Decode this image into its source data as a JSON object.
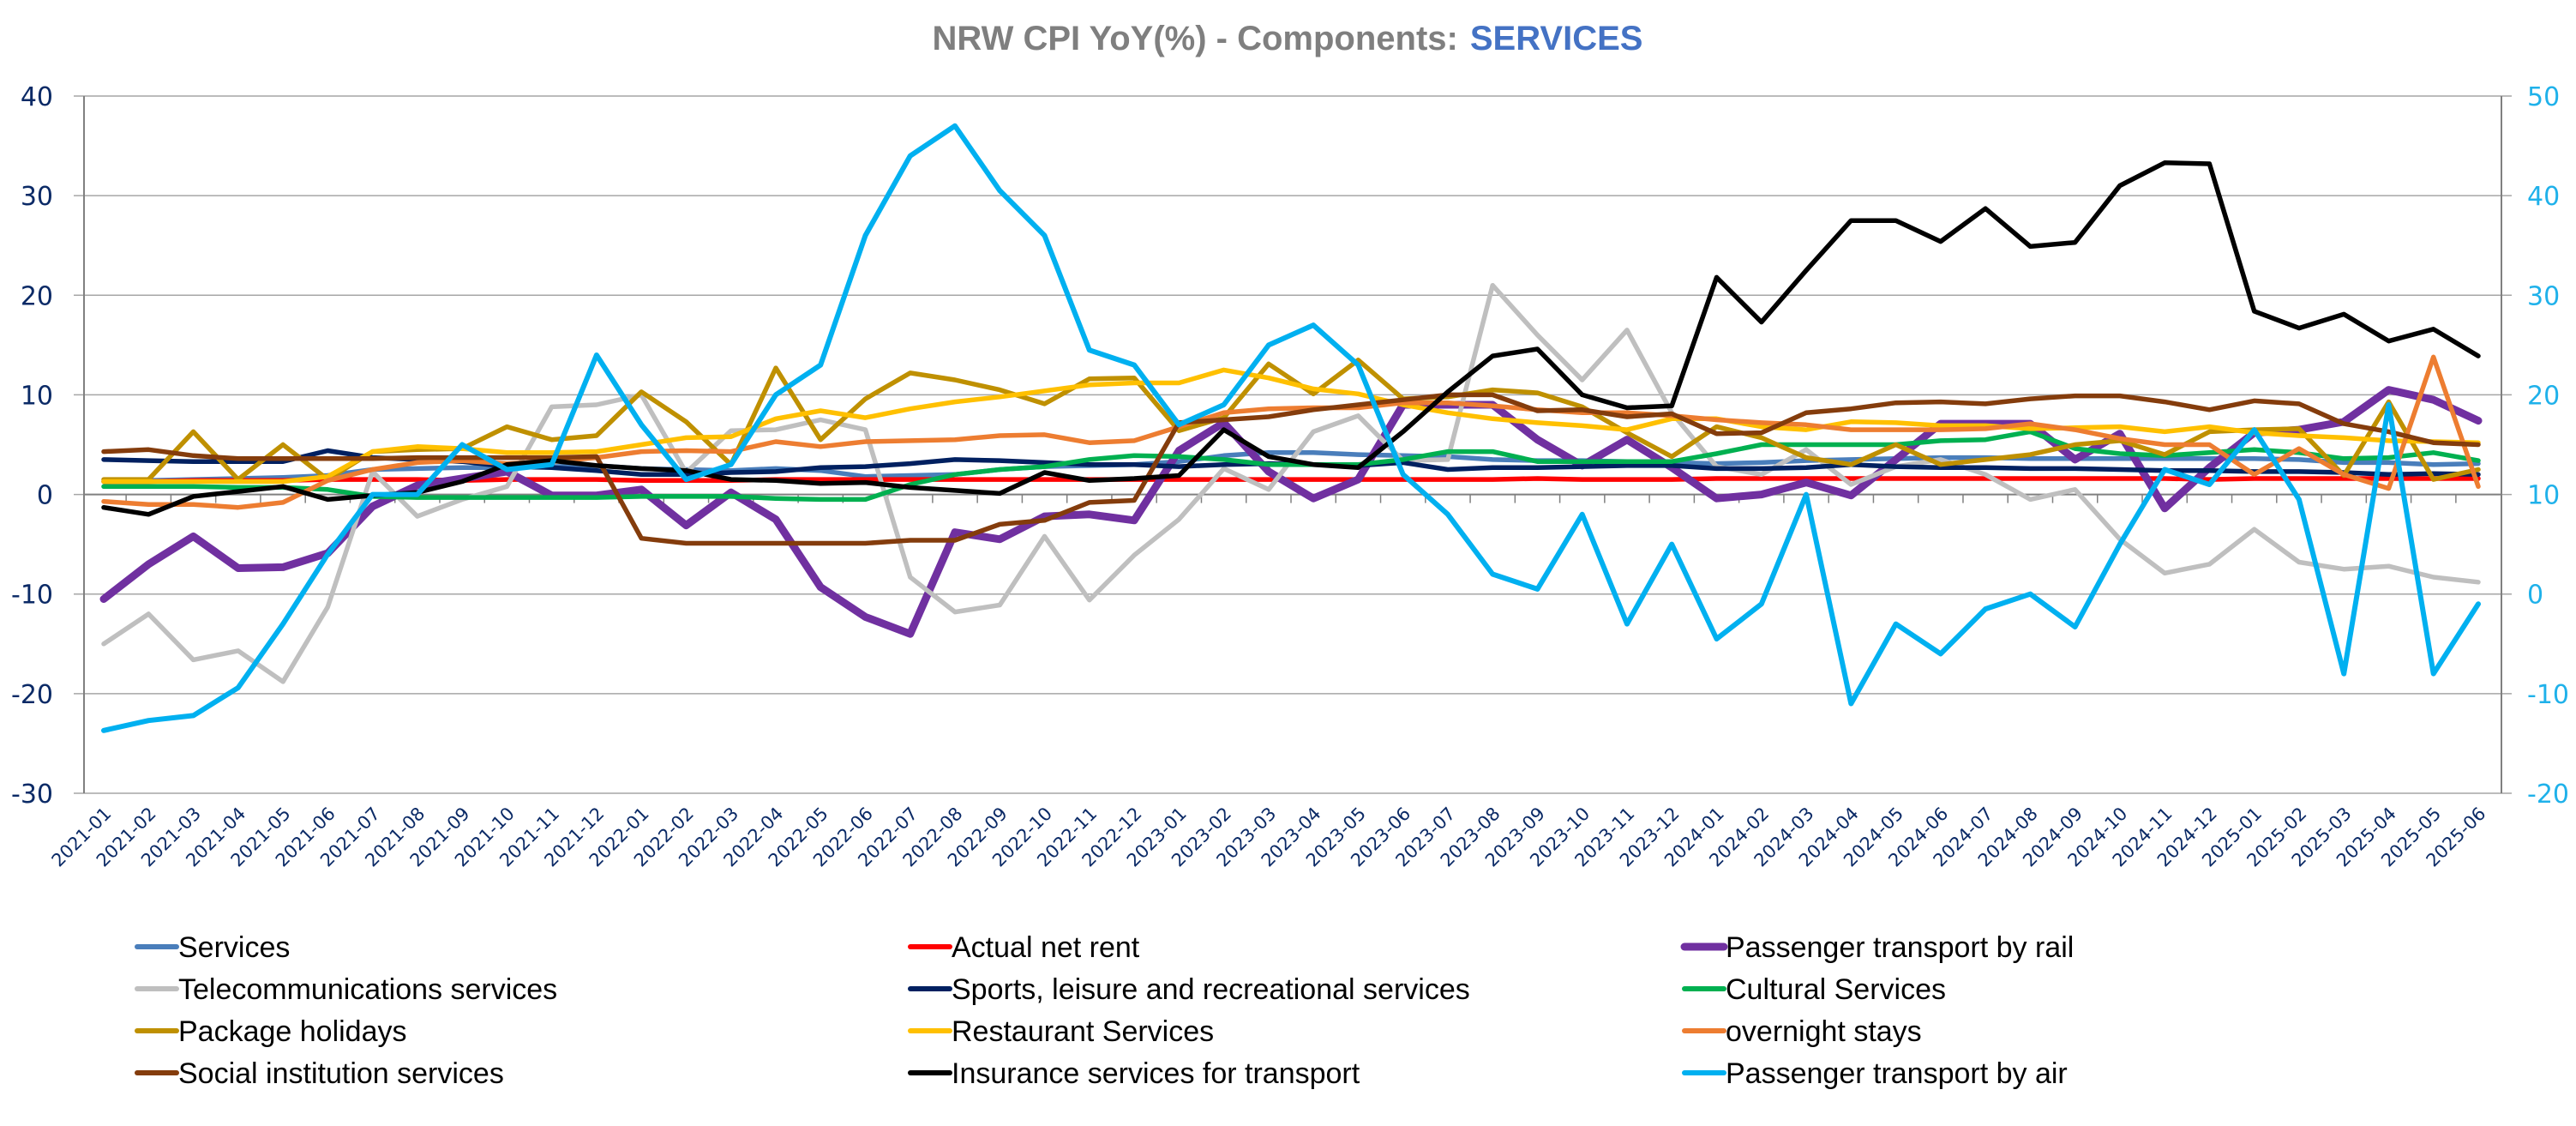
{
  "chart_data": {
    "type": "line",
    "title": "NRW CPI YoY(%) - Components:",
    "title_accent": "SERVICES",
    "xlabel": "",
    "ylabel": "",
    "y_left": {
      "ylim": [
        -30,
        40
      ],
      "ticks": [
        -30,
        -20,
        -10,
        0,
        10,
        20,
        30,
        40
      ]
    },
    "y_right": {
      "ylim": [
        -20,
        50
      ],
      "ticks": [
        -20,
        -10,
        0,
        10,
        20,
        30,
        40,
        50
      ]
    },
    "grid": true,
    "legend_position": "bottom",
    "x": [
      "2021-01",
      "2021-02",
      "2021-03",
      "2021-04",
      "2021-05",
      "2021-06",
      "2021-07",
      "2021-08",
      "2021-09",
      "2021-10",
      "2021-11",
      "2021-12",
      "2022-01",
      "2022-02",
      "2022-03",
      "2022-04",
      "2022-05",
      "2022-06",
      "2022-07",
      "2022-08",
      "2022-09",
      "2022-10",
      "2022-11",
      "2022-12",
      "2023-01",
      "2023-02",
      "2023-03",
      "2023-04",
      "2023-05",
      "2023-06",
      "2023-07",
      "2023-08",
      "2023-09",
      "2023-10",
      "2023-11",
      "2023-12",
      "2024-01",
      "2024-02",
      "2024-03",
      "2024-04",
      "2024-05",
      "2024-06",
      "2024-07",
      "2024-08",
      "2024-09",
      "2024-10",
      "2024-11",
      "2024-12",
      "2025-01",
      "2025-02",
      "2025-03",
      "2025-04",
      "2025-05",
      "2025-06"
    ],
    "series": [
      {
        "name": "Services",
        "color": "#4a7ebb",
        "axis": "left",
        "values": [
          1.3,
          1.4,
          1.5,
          1.6,
          1.7,
          1.9,
          2.5,
          2.6,
          2.7,
          2.7,
          2.8,
          2.9,
          2.6,
          2.5,
          2.4,
          2.6,
          2.4,
          1.8,
          1.9,
          2.0,
          2.5,
          2.8,
          2.9,
          3.0,
          3.3,
          3.9,
          4.2,
          4.2,
          4.0,
          3.9,
          3.8,
          3.5,
          3.4,
          3.4,
          3.3,
          3.2,
          3.1,
          3.2,
          3.4,
          3.5,
          3.6,
          3.7,
          3.7,
          3.6,
          3.6,
          3.6,
          3.6,
          3.6,
          3.6,
          3.5,
          3.2,
          3.2,
          3.0,
          3.1
        ]
      },
      {
        "name": "Actual net rent",
        "color": "#ff0000",
        "axis": "left",
        "values": [
          1.3,
          1.3,
          1.4,
          1.4,
          1.4,
          1.5,
          1.5,
          1.5,
          1.4,
          1.5,
          1.5,
          1.5,
          1.4,
          1.4,
          1.4,
          1.5,
          1.5,
          1.5,
          1.5,
          1.5,
          1.5,
          1.5,
          1.5,
          1.5,
          1.5,
          1.5,
          1.5,
          1.5,
          1.5,
          1.5,
          1.5,
          1.5,
          1.6,
          1.5,
          1.5,
          1.5,
          1.6,
          1.6,
          1.6,
          1.6,
          1.6,
          1.6,
          1.6,
          1.6,
          1.6,
          1.6,
          1.6,
          1.5,
          1.6,
          1.6,
          1.6,
          1.6,
          1.6,
          1.6
        ]
      },
      {
        "name": "Passenger transport by rail",
        "color": "#7030a0",
        "axis": "left",
        "values": [
          -10.5,
          -7,
          -4.2,
          -7.4,
          -7.3,
          -5.9,
          -1.2,
          0.9,
          1.6,
          2.3,
          -0.1,
          -0.1,
          0.5,
          -3.1,
          0.2,
          -2.5,
          -9.3,
          -12.3,
          -14,
          -3.8,
          -4.5,
          -2.2,
          -2,
          -2.6,
          4.4,
          7.2,
          2.3,
          -0.4,
          1.5,
          9,
          9,
          9,
          5.5,
          2.9,
          5.5,
          2.7,
          -0.4,
          0,
          1.2,
          -0.1,
          3.5,
          7.1,
          7.1,
          7.1,
          3.5,
          6.1,
          -1.4,
          2.7,
          6.2,
          6.5,
          7.3,
          10.5,
          9.5,
          7.4
        ]
      },
      {
        "name": "Telecommunications services",
        "color": "#bfbfbf",
        "axis": "left",
        "values": [
          -15,
          -12,
          -16.6,
          -15.7,
          -18.8,
          -11.3,
          2.3,
          -2.2,
          -0.5,
          0.8,
          8.8,
          9,
          10,
          2.2,
          6.4,
          6.5,
          7.5,
          6.5,
          -8.3,
          -11.8,
          -11.1,
          -4.2,
          -10.6,
          -6.1,
          -2.5,
          2.6,
          0.5,
          6.3,
          7.9,
          3.4,
          3.5,
          21,
          16,
          11.5,
          16.5,
          8.2,
          2.8,
          2,
          4.5,
          1,
          2.8,
          3.5,
          2,
          -0.5,
          0.5,
          -4.5,
          -7.9,
          -7,
          -3.5,
          -6.8,
          -7.5,
          -7.2,
          -8.3,
          -8.8
        ]
      },
      {
        "name": "Sports, leisure and recreational services",
        "color": "#002060",
        "axis": "left",
        "values": [
          3.5,
          3.4,
          3.3,
          3.3,
          3.3,
          4.4,
          3.7,
          3.5,
          3.3,
          2.8,
          2.7,
          2.4,
          2.0,
          2.0,
          2.2,
          2.3,
          2.7,
          2.8,
          3.1,
          3.5,
          3.4,
          3.2,
          3.0,
          3.0,
          2.8,
          3.0,
          3.1,
          3.0,
          2.9,
          3.2,
          2.5,
          2.7,
          2.7,
          2.8,
          2.9,
          2.9,
          2.6,
          2.6,
          2.7,
          3.0,
          2.8,
          2.7,
          2.7,
          2.6,
          2.6,
          2.5,
          2.4,
          2.4,
          2.3,
          2.3,
          2.2,
          2.0,
          2.1,
          2.0
        ]
      },
      {
        "name": "Cultural Services",
        "color": "#00b050",
        "axis": "left",
        "values": [
          0.8,
          0.8,
          0.8,
          0.7,
          0.7,
          0.5,
          -0.2,
          -0.3,
          -0.3,
          -0.3,
          -0.3,
          -0.3,
          -0.2,
          -0.2,
          -0.2,
          -0.4,
          -0.5,
          -0.5,
          1.0,
          2.0,
          2.5,
          2.8,
          3.5,
          3.9,
          3.8,
          3.5,
          3.0,
          3.0,
          3.0,
          3.5,
          4.3,
          4.3,
          3.3,
          3.3,
          3.3,
          3.3,
          4.1,
          5.0,
          5.0,
          5.0,
          5.0,
          5.4,
          5.5,
          6.3,
          4.6,
          4.1,
          3.9,
          4.2,
          4.5,
          4.2,
          3.6,
          3.7,
          4.2,
          3.4
        ]
      },
      {
        "name": "Package holidays",
        "color": "#bf9000",
        "axis": "left",
        "values": [
          1.5,
          1.5,
          6.3,
          1.5,
          5.0,
          1.5,
          4.3,
          4.5,
          4.6,
          6.8,
          5.5,
          5.9,
          10.3,
          7.3,
          3.0,
          12.7,
          5.5,
          9.6,
          12.2,
          11.5,
          10.5,
          9.1,
          11.6,
          11.7,
          6.4,
          7.7,
          13.1,
          10.1,
          13.5,
          9.6,
          9.8,
          10.5,
          10.2,
          8.8,
          6.2,
          3.8,
          6.8,
          5.7,
          3.7,
          3.0,
          5.0,
          3.0,
          3.5,
          4.0,
          5.0,
          5.4,
          4.0,
          6.3,
          6.5,
          6.6,
          1.9,
          9.3,
          1.5,
          2.5
        ]
      },
      {
        "name": "Restaurant Services",
        "color": "#ffc000",
        "axis": "left",
        "values": [
          1.3,
          1.3,
          1.3,
          1.3,
          1.3,
          1.8,
          4.3,
          4.8,
          4.6,
          4.2,
          4.2,
          4.3,
          5.0,
          5.7,
          5.8,
          7.6,
          8.4,
          7.7,
          8.6,
          9.3,
          9.8,
          10.4,
          11.0,
          11.2,
          11.2,
          12.5,
          11.7,
          10.6,
          10.1,
          9.0,
          8.2,
          7.6,
          7.2,
          6.9,
          6.5,
          7.6,
          7.6,
          6.8,
          6.5,
          7.3,
          7.2,
          6.9,
          6.9,
          6.6,
          6.7,
          6.8,
          6.3,
          6.8,
          6.2,
          5.9,
          5.7,
          5.4,
          5.3,
          5.2
        ]
      },
      {
        "name": "overnight stays",
        "color": "#ed7d31",
        "axis": "left",
        "values": [
          -0.7,
          -1.0,
          -1.0,
          -1.3,
          -0.8,
          1.4,
          2.5,
          3.2,
          3.4,
          3.1,
          3.3,
          3.7,
          4.3,
          4.4,
          4.3,
          5.3,
          4.8,
          5.3,
          5.4,
          5.5,
          5.9,
          6.0,
          5.2,
          5.4,
          6.8,
          8.2,
          8.6,
          8.7,
          8.7,
          9.2,
          9.2,
          8.9,
          8.5,
          8.2,
          8.2,
          7.9,
          7.5,
          7.2,
          7.0,
          6.5,
          6.5,
          6.5,
          6.6,
          7.1,
          6.5,
          5.6,
          5.0,
          5.0,
          2.0,
          4.6,
          2.0,
          0.6,
          13.8,
          0.8
        ]
      },
      {
        "name": "Social institution services",
        "color": "#843c0c",
        "axis": "left",
        "values": [
          4.3,
          4.5,
          3.9,
          3.6,
          3.6,
          3.6,
          3.6,
          3.7,
          3.7,
          3.7,
          3.7,
          3.8,
          -4.4,
          -4.9,
          -4.9,
          -4.9,
          -4.9,
          -4.9,
          -4.6,
          -4.6,
          -3.0,
          -2.6,
          -0.8,
          -0.6,
          7.2,
          7.5,
          7.8,
          8.5,
          9.0,
          9.5,
          10.0,
          10.0,
          8.4,
          8.5,
          7.8,
          8.1,
          6.1,
          6.2,
          8.2,
          8.6,
          9.2,
          9.3,
          9.1,
          9.6,
          9.9,
          9.9,
          9.3,
          8.5,
          9.4,
          9.1,
          7.1,
          6.3,
          5.2,
          5.0
        ]
      },
      {
        "name": "Insurance services for transport",
        "color": "#000000",
        "axis": "left",
        "values": [
          -1.3,
          -2.0,
          -0.2,
          0.3,
          0.8,
          -0.5,
          -0.1,
          0.2,
          1.3,
          3.0,
          3.4,
          2.9,
          2.6,
          2.4,
          1.5,
          1.4,
          1.1,
          1.2,
          0.7,
          0.4,
          0.1,
          2.2,
          1.4,
          1.6,
          1.9,
          6.5,
          3.8,
          3.0,
          2.7,
          6.3,
          10.3,
          13.9,
          14.6,
          10.0,
          8.7,
          8.9,
          21.8,
          17.3,
          22.5,
          27.5,
          27.5,
          25.4,
          28.7,
          24.9,
          25.3,
          31.0,
          33.3,
          33.2,
          18.4,
          16.7,
          18.1,
          15.4,
          16.6,
          13.9
        ]
      },
      {
        "name": "Passenger transport by air",
        "color": "#00b0f0",
        "axis": "right",
        "values": [
          -13.7,
          -12.7,
          -12.2,
          -9.4,
          -3.0,
          4.0,
          10.0,
          10.0,
          15.0,
          12.5,
          13.0,
          24.0,
          17.0,
          11.5,
          13.0,
          20.0,
          23.0,
          36.0,
          44.0,
          47.0,
          40.5,
          36.0,
          24.5,
          23.0,
          17.0,
          19.0,
          25.0,
          27.0,
          23.0,
          12.0,
          8.0,
          2.0,
          0.5,
          8.0,
          -3.0,
          5.0,
          -4.5,
          -1.0,
          10.0,
          -11.0,
          -3.0,
          -6.0,
          -1.5,
          0.0,
          -3.3,
          5.0,
          12.5,
          11.0,
          16.5,
          9.5,
          -8.0,
          19.0,
          -8.0,
          -1.0
        ]
      }
    ]
  }
}
